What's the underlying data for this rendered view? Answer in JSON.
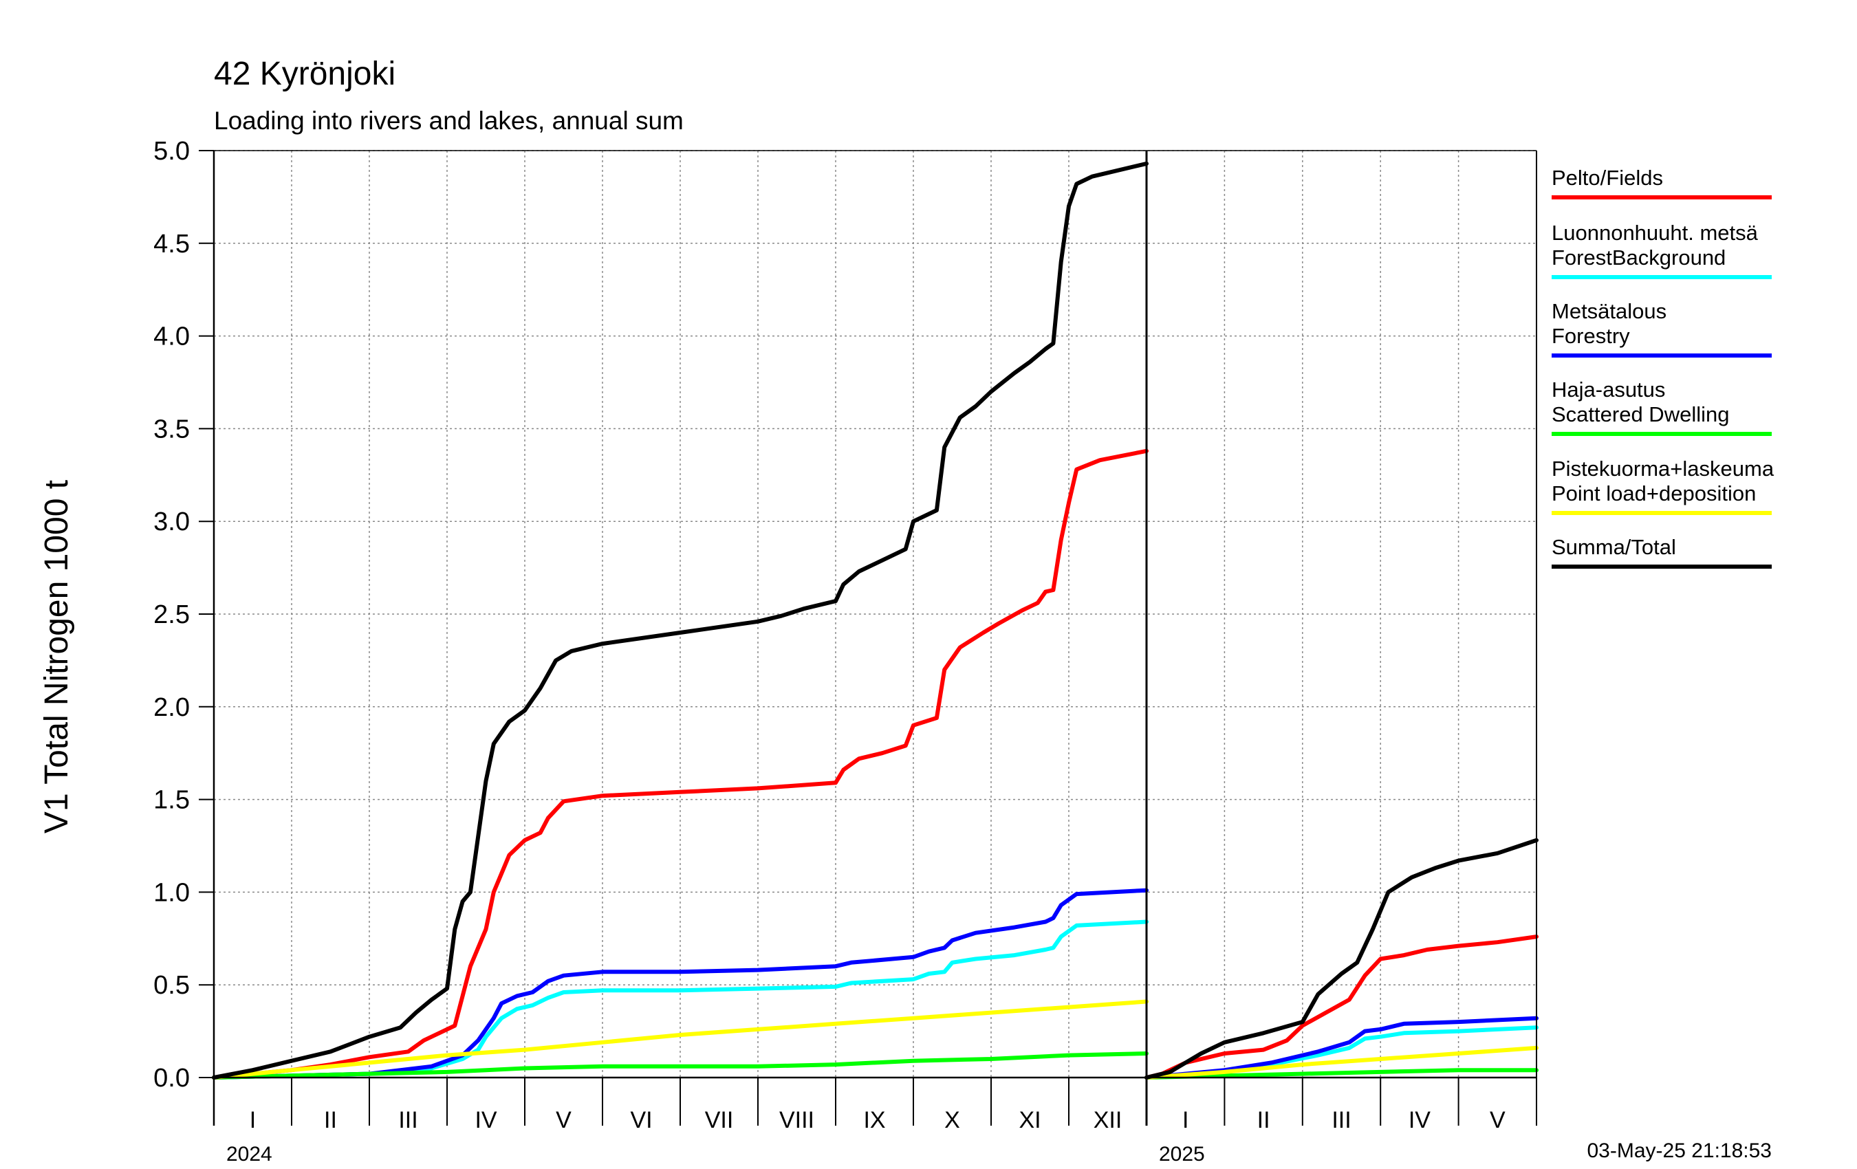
{
  "chart_data": {
    "type": "line",
    "title": "42 Kyrönjoki",
    "subtitle": "Loading into rivers and lakes, annual sum",
    "ylabel": "V1 Total Nitrogen 1000 t",
    "ylim": [
      0,
      5
    ],
    "yticks": [
      "0.0",
      "0.5",
      "1.0",
      "1.5",
      "2.0",
      "2.5",
      "3.0",
      "3.5",
      "4.0",
      "4.5",
      "5.0"
    ],
    "grid": true,
    "legend_position": "right",
    "timestamp": "03-May-25 21:18:53",
    "x_unit": "month",
    "panels": [
      {
        "year": "2024",
        "xlim": [
          0,
          12
        ],
        "months": [
          "I",
          "II",
          "III",
          "IV",
          "V",
          "VI",
          "VII",
          "VIII",
          "IX",
          "X",
          "XI",
          "XII"
        ]
      },
      {
        "year": "2025",
        "xlim": [
          0,
          5
        ],
        "months": [
          "I",
          "II",
          "III",
          "IV",
          "V"
        ]
      }
    ],
    "series": [
      {
        "key": "fields",
        "name": [
          "Pelto/Fields"
        ],
        "color": "#ff0000",
        "data": [
          [
            [
              0,
              0
            ],
            [
              0.5,
              0.02
            ],
            [
              1.0,
              0.04
            ],
            [
              1.5,
              0.07
            ],
            [
              2.0,
              0.11
            ],
            [
              2.5,
              0.14
            ],
            [
              2.7,
              0.2
            ],
            [
              3.1,
              0.28
            ],
            [
              3.3,
              0.6
            ],
            [
              3.5,
              0.8
            ],
            [
              3.6,
              1.0
            ],
            [
              3.8,
              1.2
            ],
            [
              4.0,
              1.28
            ],
            [
              4.2,
              1.32
            ],
            [
              4.3,
              1.4
            ],
            [
              4.5,
              1.49
            ],
            [
              5,
              1.52
            ],
            [
              6,
              1.54
            ],
            [
              7,
              1.56
            ],
            [
              8,
              1.59
            ],
            [
              8.1,
              1.66
            ],
            [
              8.3,
              1.72
            ],
            [
              8.6,
              1.75
            ],
            [
              8.9,
              1.79
            ],
            [
              9.0,
              1.9
            ],
            [
              9.3,
              1.94
            ],
            [
              9.4,
              2.2
            ],
            [
              9.6,
              2.32
            ],
            [
              9.9,
              2.4
            ],
            [
              10.1,
              2.45
            ],
            [
              10.4,
              2.52
            ],
            [
              10.6,
              2.56
            ],
            [
              10.7,
              2.62
            ],
            [
              10.8,
              2.63
            ],
            [
              10.9,
              2.9
            ],
            [
              11.0,
              3.1
            ],
            [
              11.1,
              3.28
            ],
            [
              11.4,
              3.33
            ],
            [
              12,
              3.38
            ]
          ],
          [
            [
              0,
              0
            ],
            [
              0.2,
              0.02
            ],
            [
              0.5,
              0.08
            ],
            [
              1.0,
              0.13
            ],
            [
              1.5,
              0.15
            ],
            [
              1.8,
              0.2
            ],
            [
              2.0,
              0.28
            ],
            [
              2.3,
              0.35
            ],
            [
              2.6,
              0.42
            ],
            [
              2.8,
              0.55
            ],
            [
              3.0,
              0.64
            ],
            [
              3.3,
              0.66
            ],
            [
              3.6,
              0.69
            ],
            [
              4.0,
              0.71
            ],
            [
              4.5,
              0.73
            ],
            [
              5,
              0.76
            ]
          ]
        ]
      },
      {
        "key": "forest_background",
        "name": [
          "Luonnonhuuht. metsä",
          "ForestBackground"
        ],
        "color": "#00ffff",
        "data": [
          [
            [
              0,
              0
            ],
            [
              1,
              0.01
            ],
            [
              2,
              0.02
            ],
            [
              2.8,
              0.05
            ],
            [
              3.2,
              0.1
            ],
            [
              3.4,
              0.15
            ],
            [
              3.5,
              0.22
            ],
            [
              3.7,
              0.32
            ],
            [
              3.9,
              0.37
            ],
            [
              4.1,
              0.39
            ],
            [
              4.3,
              0.43
            ],
            [
              4.5,
              0.46
            ],
            [
              5,
              0.47
            ],
            [
              6,
              0.47
            ],
            [
              7,
              0.48
            ],
            [
              8,
              0.49
            ],
            [
              8.2,
              0.51
            ],
            [
              9.0,
              0.53
            ],
            [
              9.2,
              0.56
            ],
            [
              9.4,
              0.57
            ],
            [
              9.5,
              0.62
            ],
            [
              9.8,
              0.64
            ],
            [
              10.3,
              0.66
            ],
            [
              10.7,
              0.69
            ],
            [
              10.8,
              0.7
            ],
            [
              10.9,
              0.76
            ],
            [
              11.1,
              0.82
            ],
            [
              12,
              0.84
            ]
          ],
          [
            [
              0,
              0
            ],
            [
              1.0,
              0.03
            ],
            [
              1.6,
              0.07
            ],
            [
              2.2,
              0.12
            ],
            [
              2.6,
              0.16
            ],
            [
              2.8,
              0.21
            ],
            [
              3.0,
              0.22
            ],
            [
              3.3,
              0.24
            ],
            [
              4.0,
              0.25
            ],
            [
              5,
              0.27
            ]
          ]
        ]
      },
      {
        "key": "forestry",
        "name": [
          "Metsätalous",
          "Forestry"
        ],
        "color": "#0000ff",
        "data": [
          [
            [
              0,
              0
            ],
            [
              1,
              0.01
            ],
            [
              2,
              0.02
            ],
            [
              2.8,
              0.06
            ],
            [
              3.2,
              0.12
            ],
            [
              3.4,
              0.2
            ],
            [
              3.6,
              0.32
            ],
            [
              3.7,
              0.4
            ],
            [
              3.9,
              0.44
            ],
            [
              4.1,
              0.46
            ],
            [
              4.3,
              0.52
            ],
            [
              4.5,
              0.55
            ],
            [
              5,
              0.57
            ],
            [
              6,
              0.57
            ],
            [
              7,
              0.58
            ],
            [
              8,
              0.6
            ],
            [
              8.2,
              0.62
            ],
            [
              9.0,
              0.65
            ],
            [
              9.2,
              0.68
            ],
            [
              9.4,
              0.7
            ],
            [
              9.5,
              0.74
            ],
            [
              9.8,
              0.78
            ],
            [
              10.3,
              0.81
            ],
            [
              10.7,
              0.84
            ],
            [
              10.8,
              0.86
            ],
            [
              10.9,
              0.93
            ],
            [
              11.1,
              0.99
            ],
            [
              12,
              1.01
            ]
          ],
          [
            [
              0,
              0
            ],
            [
              1.0,
              0.04
            ],
            [
              1.6,
              0.08
            ],
            [
              2.2,
              0.14
            ],
            [
              2.6,
              0.19
            ],
            [
              2.8,
              0.25
            ],
            [
              3.0,
              0.26
            ],
            [
              3.3,
              0.29
            ],
            [
              4.0,
              0.3
            ],
            [
              5,
              0.32
            ]
          ]
        ]
      },
      {
        "key": "scattered_dwelling",
        "name": [
          "Haja-asutus",
          "Scattered Dwelling"
        ],
        "color": "#00ff00",
        "data": [
          [
            [
              0,
              0
            ],
            [
              1,
              0.01
            ],
            [
              2,
              0.02
            ],
            [
              3,
              0.03
            ],
            [
              3.5,
              0.04
            ],
            [
              4,
              0.05
            ],
            [
              5,
              0.06
            ],
            [
              6,
              0.06
            ],
            [
              7,
              0.06
            ],
            [
              8,
              0.07
            ],
            [
              9,
              0.09
            ],
            [
              10,
              0.1
            ],
            [
              11,
              0.12
            ],
            [
              12,
              0.13
            ]
          ],
          [
            [
              0,
              0
            ],
            [
              1,
              0.01
            ],
            [
              2,
              0.02
            ],
            [
              3,
              0.03
            ],
            [
              4,
              0.04
            ],
            [
              5,
              0.04
            ]
          ]
        ]
      },
      {
        "key": "point_load",
        "name": [
          "Pistekuorma+laskeuma",
          "Point load+deposition"
        ],
        "color": "#ffff00",
        "data": [
          [
            [
              0,
              0
            ],
            [
              1,
              0.04
            ],
            [
              2,
              0.08
            ],
            [
              3,
              0.12
            ],
            [
              4,
              0.15
            ],
            [
              5,
              0.19
            ],
            [
              6,
              0.23
            ],
            [
              7,
              0.26
            ],
            [
              8,
              0.29
            ],
            [
              9,
              0.32
            ],
            [
              10,
              0.35
            ],
            [
              11,
              0.38
            ],
            [
              12,
              0.41
            ]
          ],
          [
            [
              0,
              0
            ],
            [
              1,
              0.03
            ],
            [
              2,
              0.07
            ],
            [
              3,
              0.1
            ],
            [
              4,
              0.13
            ],
            [
              5,
              0.16
            ]
          ]
        ]
      },
      {
        "key": "total",
        "name": [
          "Summa/Total"
        ],
        "color": "#000000",
        "data": [
          [
            [
              0,
              0
            ],
            [
              0.5,
              0.04
            ],
            [
              1.0,
              0.09
            ],
            [
              1.5,
              0.14
            ],
            [
              2.0,
              0.22
            ],
            [
              2.4,
              0.27
            ],
            [
              2.6,
              0.35
            ],
            [
              2.8,
              0.42
            ],
            [
              3.0,
              0.48
            ],
            [
              3.1,
              0.8
            ],
            [
              3.2,
              0.95
            ],
            [
              3.3,
              1.0
            ],
            [
              3.4,
              1.3
            ],
            [
              3.5,
              1.6
            ],
            [
              3.6,
              1.8
            ],
            [
              3.8,
              1.92
            ],
            [
              4.0,
              1.98
            ],
            [
              4.2,
              2.1
            ],
            [
              4.4,
              2.25
            ],
            [
              4.6,
              2.3
            ],
            [
              5,
              2.34
            ],
            [
              6,
              2.4
            ],
            [
              7,
              2.46
            ],
            [
              7.3,
              2.49
            ],
            [
              7.6,
              2.53
            ],
            [
              8,
              2.57
            ],
            [
              8.1,
              2.66
            ],
            [
              8.3,
              2.73
            ],
            [
              8.6,
              2.79
            ],
            [
              8.9,
              2.85
            ],
            [
              9.0,
              3.0
            ],
            [
              9.3,
              3.06
            ],
            [
              9.4,
              3.4
            ],
            [
              9.6,
              3.56
            ],
            [
              9.8,
              3.62
            ],
            [
              10.0,
              3.7
            ],
            [
              10.3,
              3.8
            ],
            [
              10.5,
              3.86
            ],
            [
              10.7,
              3.93
            ],
            [
              10.8,
              3.96
            ],
            [
              10.9,
              4.4
            ],
            [
              11.0,
              4.7
            ],
            [
              11.1,
              4.82
            ],
            [
              11.3,
              4.86
            ],
            [
              12,
              4.93
            ]
          ],
          [
            [
              0,
              0
            ],
            [
              0.3,
              0.03
            ],
            [
              0.5,
              0.08
            ],
            [
              0.7,
              0.13
            ],
            [
              1.0,
              0.19
            ],
            [
              1.5,
              0.24
            ],
            [
              2.0,
              0.3
            ],
            [
              2.2,
              0.45
            ],
            [
              2.5,
              0.56
            ],
            [
              2.7,
              0.62
            ],
            [
              2.9,
              0.8
            ],
            [
              3.1,
              1.0
            ],
            [
              3.4,
              1.08
            ],
            [
              3.7,
              1.13
            ],
            [
              4.0,
              1.17
            ],
            [
              4.5,
              1.21
            ],
            [
              5,
              1.28
            ]
          ]
        ]
      }
    ]
  }
}
